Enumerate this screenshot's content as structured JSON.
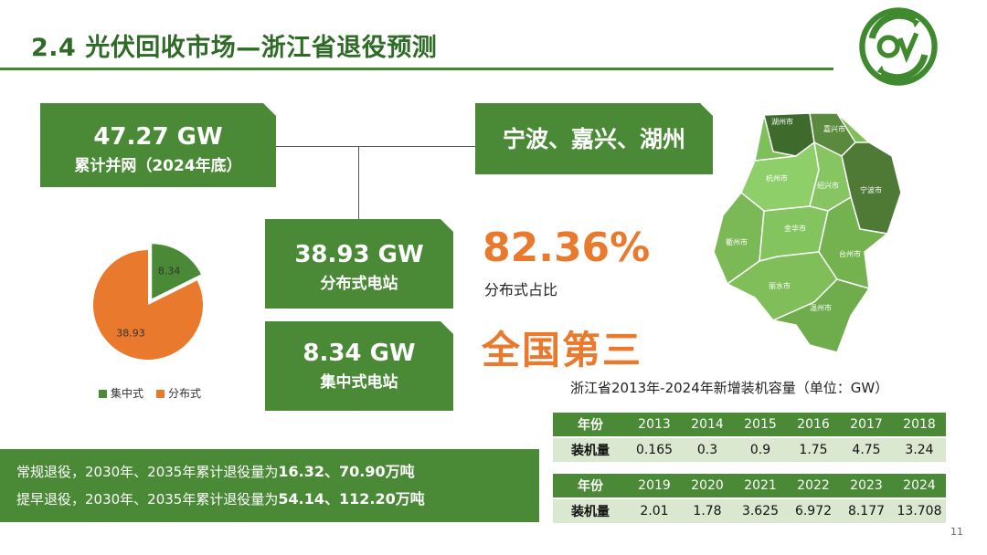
{
  "header": {
    "title": "2.4 光伏回收市场—浙江省退役预测"
  },
  "colors": {
    "green": "#4a8a36",
    "orange": "#e8792d",
    "title_green": "#2e6b26"
  },
  "total": {
    "value": "47.27 GW",
    "label": "累计并网（2024年底）"
  },
  "cities": {
    "label": "宁波、嘉兴、湖州"
  },
  "distributed": {
    "value": "38.93 GW",
    "label": "分布式电站"
  },
  "centralized": {
    "value": "8.34 GW",
    "label": "集中式电站"
  },
  "share": {
    "value": "82.36%",
    "label": "分布式占比"
  },
  "rank": {
    "label": "全国第三"
  },
  "chart_data": {
    "type": "pie",
    "slices": [
      {
        "name": "集中式",
        "value": 8.34,
        "label": "8.34",
        "color": "#4a8a36"
      },
      {
        "name": "分布式",
        "value": 38.93,
        "label": "38.93",
        "color": "#e8792d"
      }
    ],
    "legend": [
      "集中式",
      "分布式"
    ]
  },
  "map": {
    "cities": [
      "湖州市",
      "嘉兴市",
      "杭州市",
      "绍兴市",
      "宁波市",
      "衢州市",
      "金华市",
      "台州市",
      "丽水市",
      "温州市"
    ]
  },
  "table": {
    "title": "浙江省2013年-2024年新增装机容量（单位：GW）",
    "year_header": "年份",
    "value_header": "装机量",
    "row1": {
      "years": [
        "2013",
        "2014",
        "2015",
        "2016",
        "2017",
        "2018"
      ],
      "values": [
        "0.165",
        "0.3",
        "0.9",
        "1.75",
        "4.75",
        "3.24"
      ]
    },
    "row2": {
      "years": [
        "2019",
        "2020",
        "2021",
        "2022",
        "2023",
        "2024"
      ],
      "values": [
        "2.01",
        "1.78",
        "3.625",
        "6.972",
        "8.177",
        "13.708"
      ]
    }
  },
  "retirement": {
    "line1_prefix": "常规退役，2030年、2035年累计退役量为",
    "line1_values": "16.32、70.90万吨",
    "line2_prefix": "提早退役，2030年、2035年累计退役量为",
    "line2_values": "54.14、112.20万吨"
  },
  "page": {
    "number": "11"
  }
}
